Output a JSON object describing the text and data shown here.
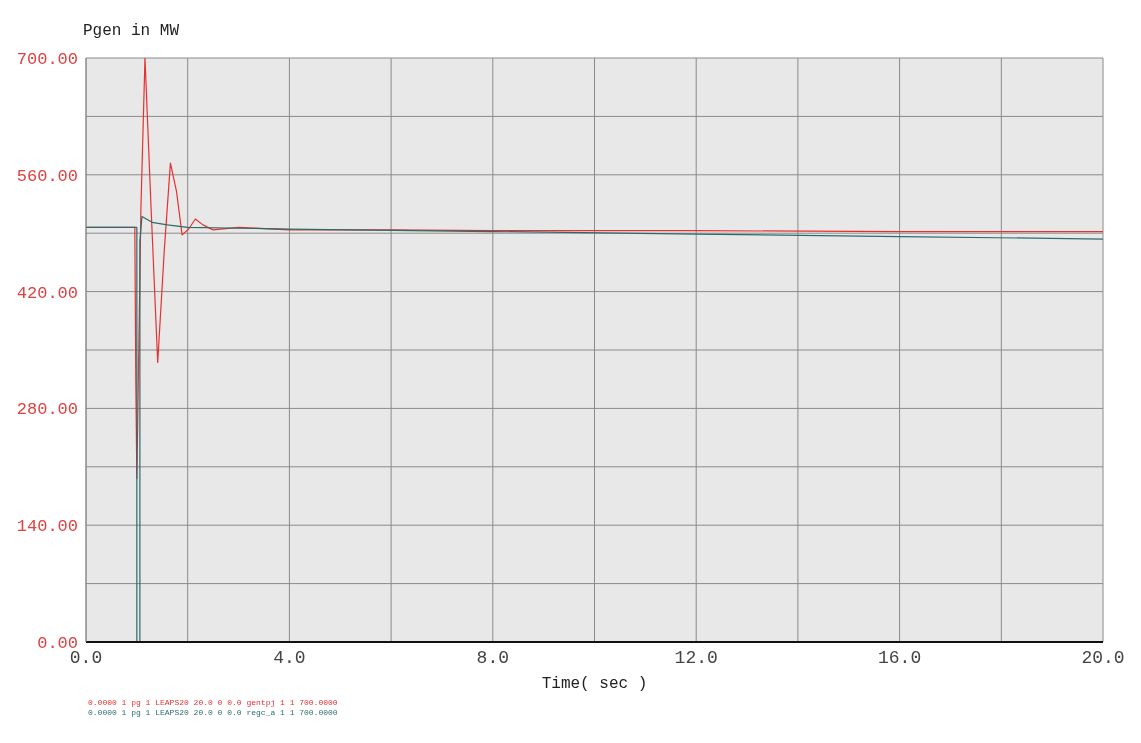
{
  "chart_data": {
    "type": "line",
    "ylabel": "Pgen in MW",
    "xlabel": "Time( sec )",
    "xlim": [
      0,
      20
    ],
    "ylim": [
      0,
      700
    ],
    "xticks": [
      {
        "value": 0,
        "label": "0.0"
      },
      {
        "value": 2,
        "label": null
      },
      {
        "value": 4,
        "label": "4.0"
      },
      {
        "value": 6,
        "label": null
      },
      {
        "value": 8,
        "label": "8.0"
      },
      {
        "value": 10,
        "label": null
      },
      {
        "value": 12,
        "label": "12.0"
      },
      {
        "value": 14,
        "label": null
      },
      {
        "value": 16,
        "label": "16.0"
      },
      {
        "value": 18,
        "label": null
      },
      {
        "value": 20,
        "label": "20.0"
      }
    ],
    "yticks": [
      {
        "value": 0,
        "label": "0.00"
      },
      {
        "value": 70,
        "label": null
      },
      {
        "value": 140,
        "label": "140.00"
      },
      {
        "value": 210,
        "label": null
      },
      {
        "value": 280,
        "label": "280.00"
      },
      {
        "value": 350,
        "label": null
      },
      {
        "value": 420,
        "label": "420.00"
      },
      {
        "value": 490,
        "label": null
      },
      {
        "value": 560,
        "label": "560.00"
      },
      {
        "value": 630,
        "label": null
      },
      {
        "value": 700,
        "label": "700.00"
      }
    ],
    "grid": true,
    "legend": "bottom left",
    "marker": "none",
    "line_style": "solid",
    "series": [
      {
        "name": "0.0000 1 pg 1 LEAPS20 20.0 0 0.0 gentpj 1 1 700.0000",
        "color": "#e83030",
        "x": [
          0,
          0.96,
          0.98,
          1.0,
          1.08,
          1.16,
          1.28,
          1.41,
          1.54,
          1.66,
          1.78,
          1.89,
          2.02,
          2.15,
          2.3,
          2.5,
          3,
          4,
          6,
          8,
          12,
          16,
          20
        ],
        "values": [
          497,
          497,
          310,
          196,
          520,
          700,
          520,
          335,
          470,
          574,
          540,
          488,
          495,
          507,
          500,
          494,
          497,
          494,
          494,
          493,
          493,
          492,
          492
        ]
      },
      {
        "name": "0.0000 1 pg 1 LEAPS20 20.0 0 0.0 regc_a 1 1 700.0000",
        "color": "#2e6b6b",
        "x": [
          0,
          1.0,
          1.0,
          1.06,
          1.06,
          1.1,
          1.3,
          1.6,
          2,
          4,
          8,
          12,
          16,
          20
        ],
        "values": [
          497,
          497,
          0,
          0,
          480,
          510,
          503,
          500,
          497,
          495,
          492,
          489,
          486,
          483
        ]
      }
    ]
  }
}
